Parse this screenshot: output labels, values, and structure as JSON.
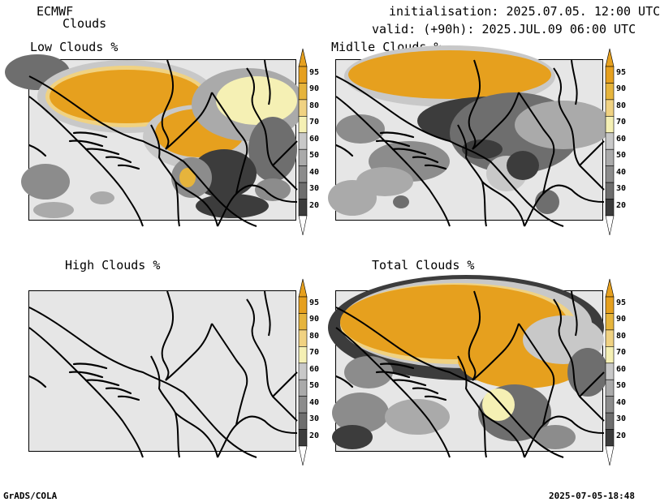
{
  "header": {
    "model": "ECMWF",
    "product": "Clouds",
    "init": "initialisation: 2025.07.05. 12:00 UTC",
    "valid": "valid: (+90h): 2025.JUL.09 06:00 UTC"
  },
  "panels": [
    {
      "title": "Low Clouds %"
    },
    {
      "title": "Midlle Clouds %"
    },
    {
      "title": "High Clouds %"
    },
    {
      "title": "Total Clouds %"
    }
  ],
  "colorbar": {
    "levels": [
      "20",
      "30",
      "40",
      "50",
      "60",
      "70",
      "80",
      "90",
      "95"
    ],
    "colors": {
      "below": "#ffffff",
      "20": "#3c3c3c",
      "30": "#6e6e6e",
      "40": "#8c8c8c",
      "50": "#aaaaaa",
      "60": "#c8c8c8",
      "70": "#f5f0b4",
      "80": "#f0d282",
      "90": "#e6b43c",
      "95": "#e6a01e"
    }
  },
  "footer": {
    "left": "GrADS/COLA",
    "right": "2025-07-05-18:48"
  }
}
